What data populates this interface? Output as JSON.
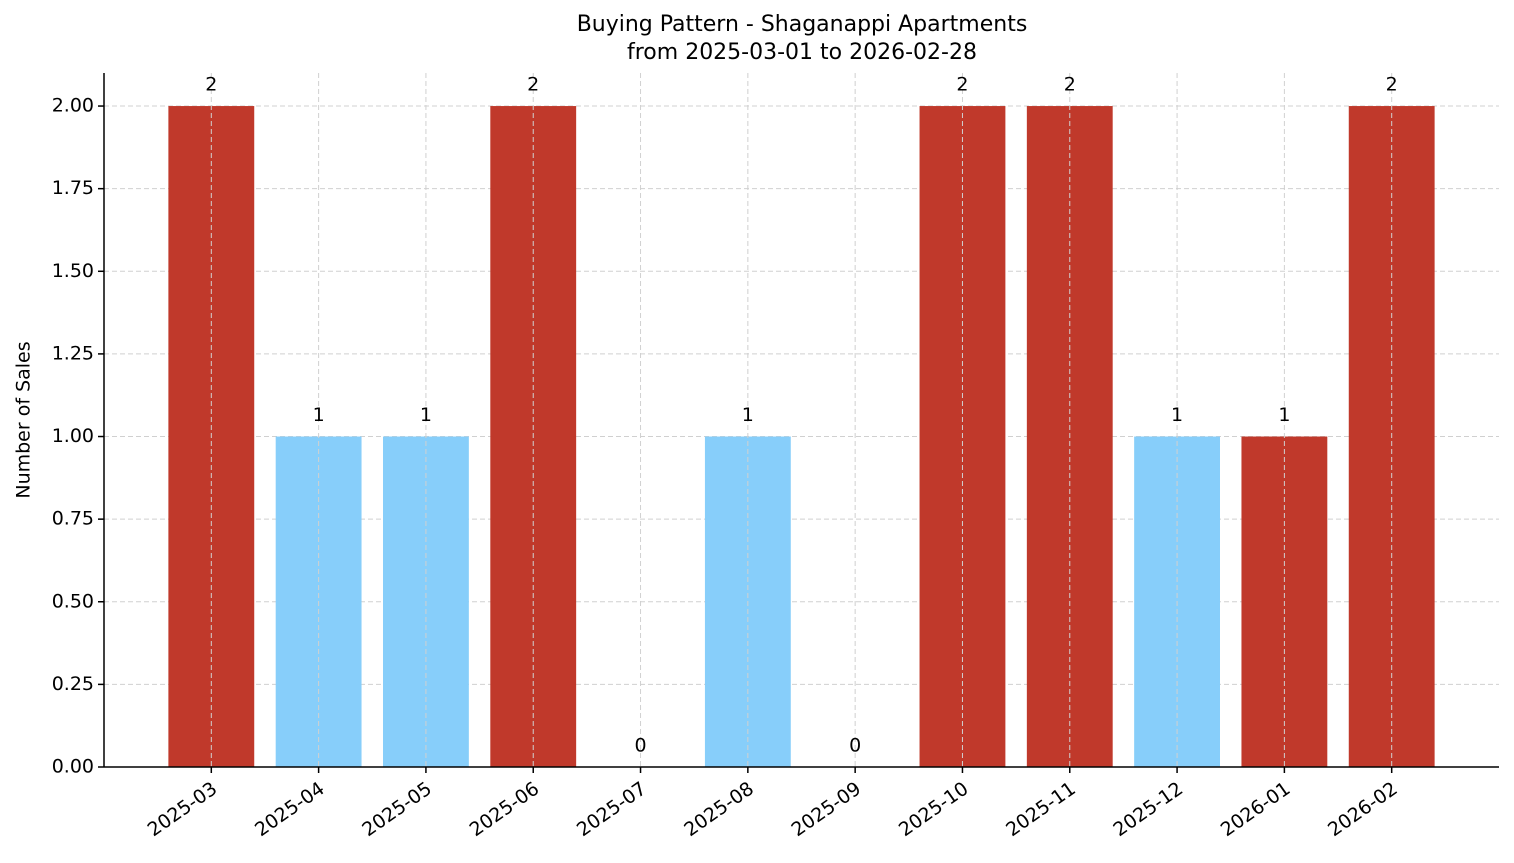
{
  "chart_data": {
    "type": "bar",
    "title": "Buying Pattern - Shaganappi Apartments",
    "subtitle": "from 2025-03-01 to 2026-02-28",
    "y_label": "Number of Sales",
    "categories": [
      "2025-03",
      "2025-04",
      "2025-05",
      "2025-06",
      "2025-07",
      "2025-08",
      "2025-09",
      "2025-10",
      "2025-11",
      "2025-12",
      "2026-01",
      "2026-02"
    ],
    "values": [
      2,
      1,
      1,
      2,
      0,
      1,
      0,
      2,
      2,
      1,
      1,
      2
    ],
    "colors": [
      "#c0392b",
      "#87cefa",
      "#87cefa",
      "#c0392b",
      "#c0392b",
      "#87cefa",
      "#c0392b",
      "#c0392b",
      "#c0392b",
      "#87cefa",
      "#c0392b",
      "#c0392b"
    ],
    "ylim": [
      0,
      2.1
    ],
    "yticks": [
      {
        "value": 0,
        "label": "0.00"
      },
      {
        "value": 0.25,
        "label": "0.25"
      },
      {
        "value": 0.5,
        "label": "0.50"
      },
      {
        "value": 0.75,
        "label": "0.75"
      },
      {
        "value": 1,
        "label": "1.00"
      },
      {
        "value": 1.25,
        "label": "1.25"
      },
      {
        "value": 1.5,
        "label": "1.50"
      },
      {
        "value": 1.75,
        "label": "1.75"
      },
      {
        "value": 2,
        "label": "2.00"
      }
    ],
    "grid": true
  }
}
